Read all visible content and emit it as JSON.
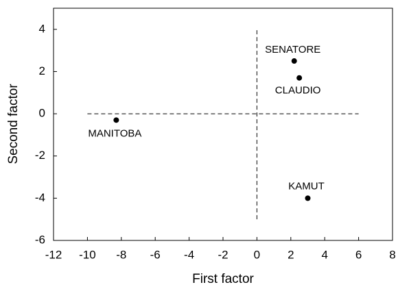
{
  "chart_data": {
    "type": "scatter",
    "x_label": "First factor",
    "y_label": "Second factor",
    "x": [
      -8.3,
      2.2,
      2.5,
      3.0
    ],
    "values": [
      -0.3,
      2.5,
      1.7,
      -4.0
    ],
    "labels": [
      "MANITOBA",
      "SENATORE",
      "CLAUDIO",
      "KAMUT"
    ],
    "color": "#000000",
    "xlim": [
      -12,
      8
    ],
    "xticks": [
      -12,
      -10,
      -8,
      -6,
      -4,
      -2,
      0,
      2,
      4,
      6,
      8
    ],
    "ylim": [
      -6,
      5
    ],
    "yticks": [
      -6,
      -4,
      -2,
      0,
      2,
      4
    ],
    "reference_lines": [
      {
        "orientation": "horizontal",
        "value": 0,
        "from": -10,
        "to": 6
      },
      {
        "orientation": "vertical",
        "value": 0,
        "from": -5,
        "to": 4
      }
    ]
  }
}
